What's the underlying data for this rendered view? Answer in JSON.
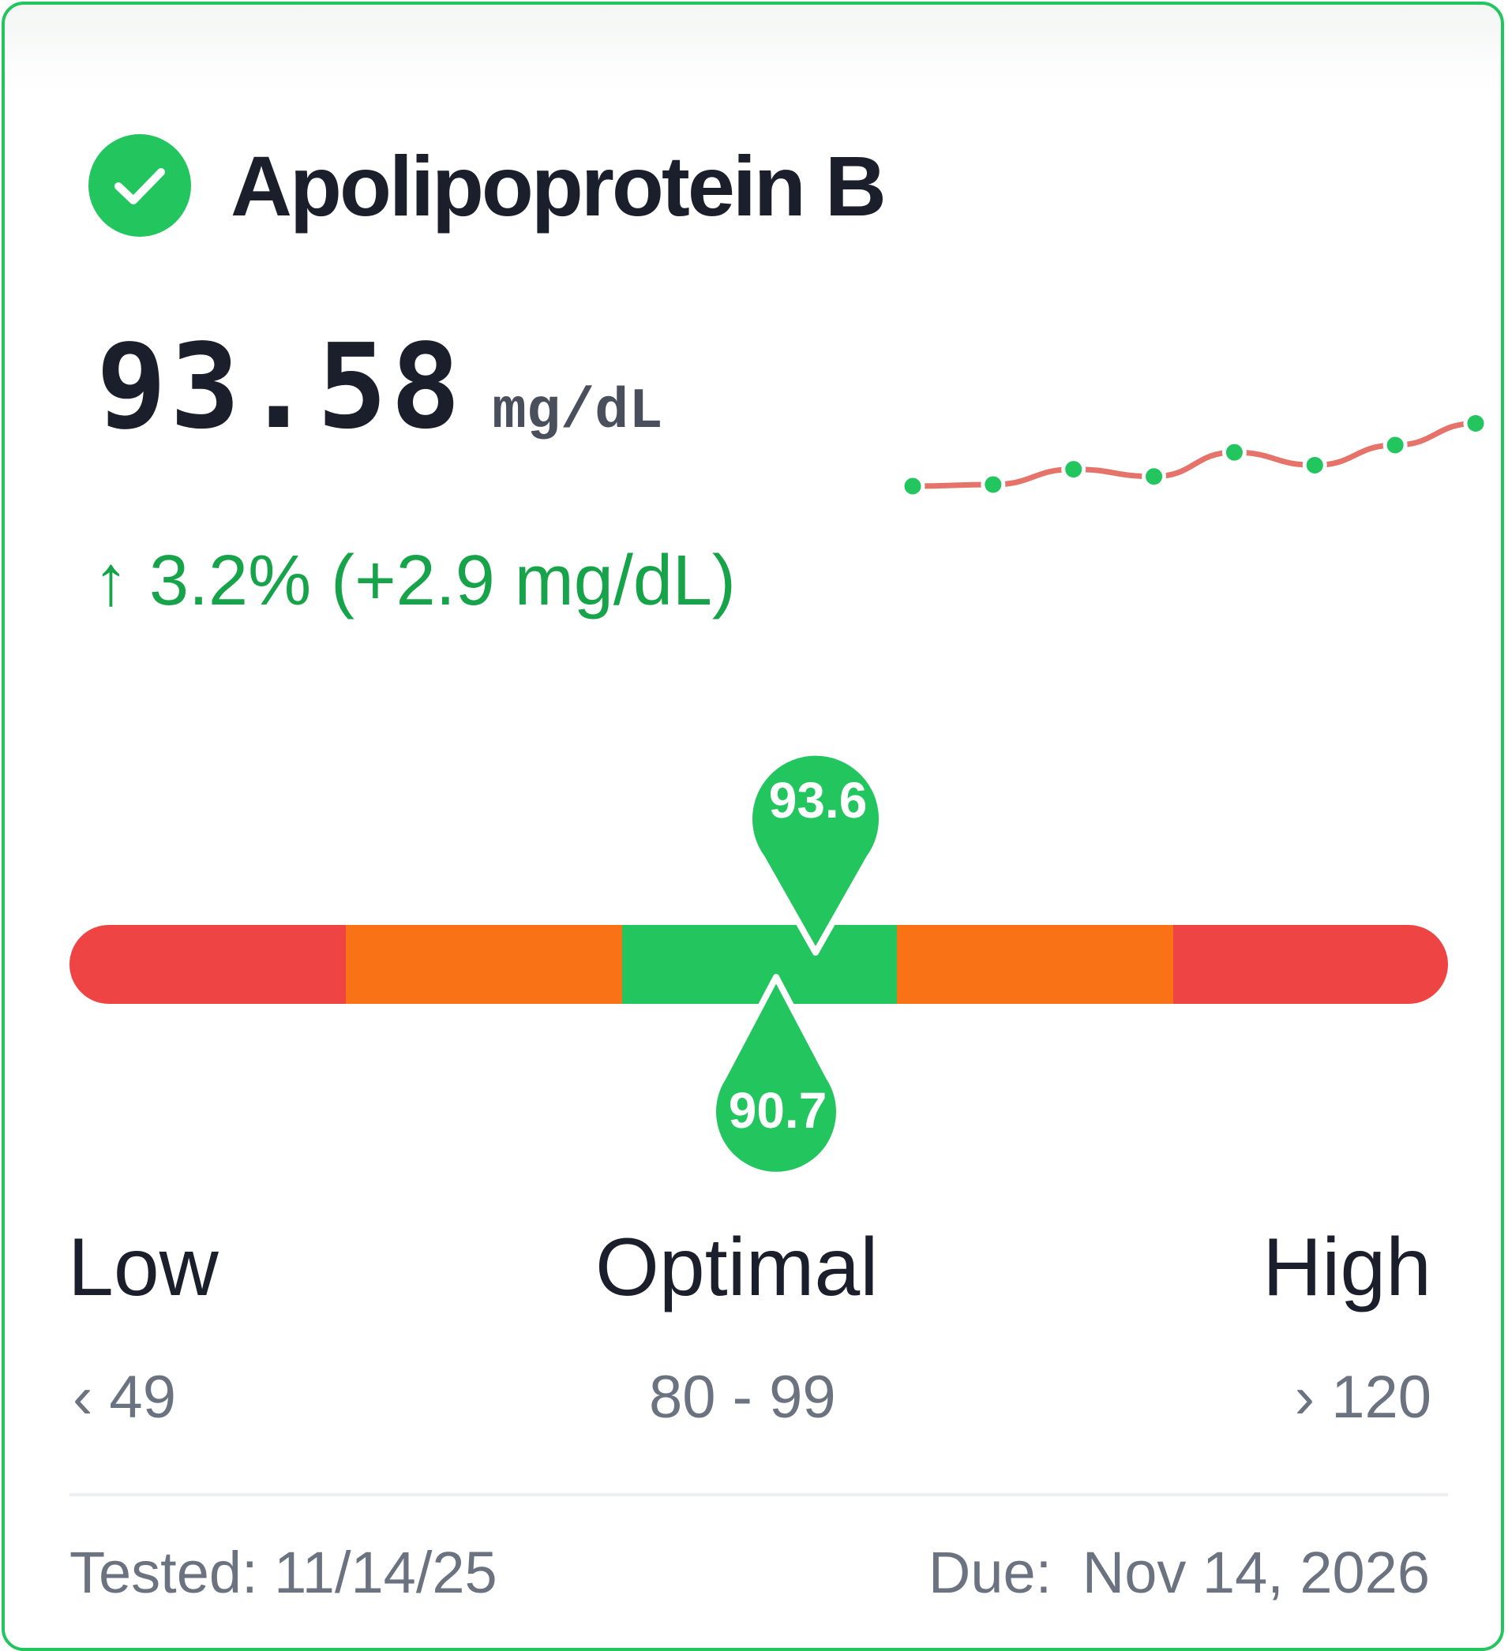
{
  "title": "Apolipoprotein B",
  "status_icon": "check-circle-icon",
  "value": "93.58",
  "unit": "mg/dL",
  "change": {
    "arrow": "↑",
    "text": "3.2% (+2.9 mg/dL)"
  },
  "trend": {
    "values": [
      0.0,
      0.02,
      0.21,
      0.12,
      0.42,
      0.26,
      0.51,
      0.78
    ],
    "line_color": "#e5736a",
    "point_color": "#22c55e"
  },
  "range_bar": {
    "segments": [
      "#ef4444",
      "#f97316",
      "#22c55e",
      "#f97316",
      "#ef4444"
    ],
    "current_pin": "93.6",
    "previous_pin": "90.7"
  },
  "bands": {
    "low": {
      "label": "Low",
      "range": "‹ 49"
    },
    "optimal": {
      "label": "Optimal",
      "range": "80 - 99"
    },
    "high": {
      "label": "High",
      "range": "› 120"
    }
  },
  "footer": {
    "tested": "Tested: 11/14/25",
    "due_label": "Due:",
    "due_date": "Nov 14, 2026"
  },
  "colors": {
    "accent": "#22c55e",
    "delta": "#16a34a",
    "text": "#1b1f2b",
    "muted": "#6b7280"
  }
}
